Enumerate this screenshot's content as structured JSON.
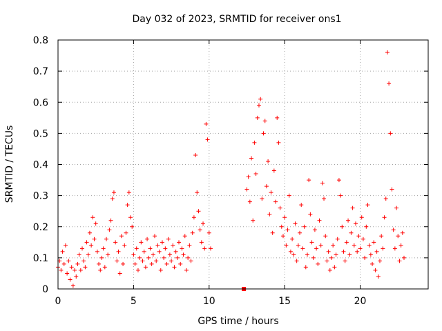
{
  "chart_data": {
    "type": "scatter",
    "title": "Day 032 of 2023, SRMTID for receiver ons1",
    "xlabel": "GPS time / hours",
    "ylabel": "SRMTID / TECUs",
    "xlim": [
      0,
      24.5
    ],
    "ylim": [
      0,
      0.8
    ],
    "x_ticks": [
      0,
      5,
      10,
      15,
      20
    ],
    "x_tick_labels": [
      "0",
      "5",
      "10",
      "15",
      "20"
    ],
    "y_ticks": [
      0,
      0.1,
      0.2,
      0.3,
      0.4,
      0.5,
      0.6,
      0.7,
      0.8
    ],
    "y_tick_labels": [
      "0",
      "0.1",
      "0.2",
      "0.3",
      "0.4",
      "0.5",
      "0.6",
      "0.7",
      "0.8"
    ],
    "grid": true,
    "marker": "+",
    "color": "#ff0000",
    "series": [
      {
        "name": "SRMTID",
        "points": [
          [
            0.0,
            0.07
          ],
          [
            0.1,
            0.09
          ],
          [
            0.2,
            0.06
          ],
          [
            0.3,
            0.12
          ],
          [
            0.4,
            0.08
          ],
          [
            0.5,
            0.14
          ],
          [
            0.6,
            0.05
          ],
          [
            0.7,
            0.09
          ],
          [
            0.8,
            0.03
          ],
          [
            0.9,
            0.07
          ],
          [
            1.0,
            0.01
          ],
          [
            1.1,
            0.06
          ],
          [
            1.2,
            0.04
          ],
          [
            1.3,
            0.08
          ],
          [
            1.4,
            0.11
          ],
          [
            1.5,
            0.06
          ],
          [
            1.6,
            0.13
          ],
          [
            1.7,
            0.09
          ],
          [
            1.8,
            0.07
          ],
          [
            1.9,
            0.15
          ],
          [
            2.0,
            0.11
          ],
          [
            2.1,
            0.18
          ],
          [
            2.2,
            0.14
          ],
          [
            2.3,
            0.23
          ],
          [
            2.4,
            0.16
          ],
          [
            2.5,
            0.21
          ],
          [
            2.6,
            0.12
          ],
          [
            2.7,
            0.08
          ],
          [
            2.8,
            0.06
          ],
          [
            2.9,
            0.1
          ],
          [
            3.0,
            0.13
          ],
          [
            3.1,
            0.07
          ],
          [
            3.2,
            0.16
          ],
          [
            3.3,
            0.11
          ],
          [
            3.4,
            0.19
          ],
          [
            3.5,
            0.22
          ],
          [
            3.6,
            0.29
          ],
          [
            3.7,
            0.31
          ],
          [
            3.8,
            0.15
          ],
          [
            3.9,
            0.09
          ],
          [
            4.0,
            0.12
          ],
          [
            4.1,
            0.05
          ],
          [
            4.2,
            0.17
          ],
          [
            4.3,
            0.08
          ],
          [
            4.4,
            0.14
          ],
          [
            4.5,
            0.18
          ],
          [
            4.6,
            0.27
          ],
          [
            4.7,
            0.31
          ],
          [
            4.8,
            0.23
          ],
          [
            4.9,
            0.2
          ],
          [
            5.0,
            0.11
          ],
          [
            5.1,
            0.08
          ],
          [
            5.2,
            0.13
          ],
          [
            5.3,
            0.06
          ],
          [
            5.4,
            0.1
          ],
          [
            5.5,
            0.15
          ],
          [
            5.6,
            0.09
          ],
          [
            5.7,
            0.12
          ],
          [
            5.8,
            0.07
          ],
          [
            5.9,
            0.16
          ],
          [
            6.0,
            0.1
          ],
          [
            6.1,
            0.13
          ],
          [
            6.2,
            0.08
          ],
          [
            6.3,
            0.11
          ],
          [
            6.4,
            0.17
          ],
          [
            6.5,
            0.09
          ],
          [
            6.6,
            0.14
          ],
          [
            6.7,
            0.12
          ],
          [
            6.8,
            0.06
          ],
          [
            6.9,
            0.15
          ],
          [
            7.0,
            0.1
          ],
          [
            7.1,
            0.13
          ],
          [
            7.2,
            0.08
          ],
          [
            7.3,
            0.16
          ],
          [
            7.4,
            0.11
          ],
          [
            7.5,
            0.09
          ],
          [
            7.6,
            0.14
          ],
          [
            7.7,
            0.07
          ],
          [
            7.8,
            0.12
          ],
          [
            7.9,
            0.1
          ],
          [
            8.0,
            0.15
          ],
          [
            8.1,
            0.08
          ],
          [
            8.2,
            0.13
          ],
          [
            8.3,
            0.11
          ],
          [
            8.4,
            0.17
          ],
          [
            8.5,
            0.06
          ],
          [
            8.6,
            0.1
          ],
          [
            8.7,
            0.14
          ],
          [
            8.8,
            0.09
          ],
          [
            8.9,
            0.18
          ],
          [
            9.0,
            0.23
          ],
          [
            9.1,
            0.43
          ],
          [
            9.2,
            0.31
          ],
          [
            9.3,
            0.25
          ],
          [
            9.4,
            0.19
          ],
          [
            9.5,
            0.15
          ],
          [
            9.6,
            0.21
          ],
          [
            9.7,
            0.13
          ],
          [
            9.8,
            0.53
          ],
          [
            9.9,
            0.48
          ],
          [
            10.0,
            0.18
          ],
          [
            10.1,
            0.13
          ],
          [
            12.3,
            0.0
          ],
          [
            12.5,
            0.32
          ],
          [
            12.6,
            0.36
          ],
          [
            12.7,
            0.28
          ],
          [
            12.8,
            0.42
          ],
          [
            12.9,
            0.22
          ],
          [
            13.0,
            0.47
          ],
          [
            13.1,
            0.37
          ],
          [
            13.2,
            0.55
          ],
          [
            13.3,
            0.59
          ],
          [
            13.4,
            0.61
          ],
          [
            13.5,
            0.29
          ],
          [
            13.6,
            0.5
          ],
          [
            13.7,
            0.54
          ],
          [
            13.8,
            0.33
          ],
          [
            13.9,
            0.41
          ],
          [
            14.0,
            0.24
          ],
          [
            14.1,
            0.31
          ],
          [
            14.2,
            0.18
          ],
          [
            14.3,
            0.38
          ],
          [
            14.4,
            0.28
          ],
          [
            14.5,
            0.55
          ],
          [
            14.6,
            0.47
          ],
          [
            14.7,
            0.26
          ],
          [
            14.8,
            0.2
          ],
          [
            14.9,
            0.17
          ],
          [
            15.0,
            0.23
          ],
          [
            15.1,
            0.14
          ],
          [
            15.2,
            0.19
          ],
          [
            15.3,
            0.3
          ],
          [
            15.4,
            0.12
          ],
          [
            15.5,
            0.16
          ],
          [
            15.6,
            0.11
          ],
          [
            15.7,
            0.21
          ],
          [
            15.8,
            0.09
          ],
          [
            15.9,
            0.14
          ],
          [
            16.0,
            0.18
          ],
          [
            16.1,
            0.27
          ],
          [
            16.2,
            0.13
          ],
          [
            16.3,
            0.2
          ],
          [
            16.4,
            0.07
          ],
          [
            16.5,
            0.11
          ],
          [
            16.6,
            0.35
          ],
          [
            16.7,
            0.24
          ],
          [
            16.8,
            0.15
          ],
          [
            16.9,
            0.1
          ],
          [
            17.0,
            0.19
          ],
          [
            17.1,
            0.13
          ],
          [
            17.2,
            0.08
          ],
          [
            17.3,
            0.22
          ],
          [
            17.4,
            0.14
          ],
          [
            17.5,
            0.34
          ],
          [
            17.6,
            0.29
          ],
          [
            17.7,
            0.17
          ],
          [
            17.8,
            0.09
          ],
          [
            17.9,
            0.12
          ],
          [
            18.0,
            0.06
          ],
          [
            18.1,
            0.1
          ],
          [
            18.2,
            0.14
          ],
          [
            18.3,
            0.07
          ],
          [
            18.4,
            0.11
          ],
          [
            18.5,
            0.16
          ],
          [
            18.6,
            0.35
          ],
          [
            18.7,
            0.3
          ],
          [
            18.8,
            0.2
          ],
          [
            18.9,
            0.12
          ],
          [
            19.0,
            0.09
          ],
          [
            19.1,
            0.15
          ],
          [
            19.2,
            0.22
          ],
          [
            19.3,
            0.11
          ],
          [
            19.4,
            0.18
          ],
          [
            19.5,
            0.26
          ],
          [
            19.6,
            0.14
          ],
          [
            19.7,
            0.21
          ],
          [
            19.8,
            0.12
          ],
          [
            19.9,
            0.17
          ],
          [
            20.0,
            0.13
          ],
          [
            20.1,
            0.23
          ],
          [
            20.2,
            0.16
          ],
          [
            20.3,
            0.1
          ],
          [
            20.4,
            0.2
          ],
          [
            20.5,
            0.27
          ],
          [
            20.6,
            0.14
          ],
          [
            20.7,
            0.11
          ],
          [
            20.8,
            0.08
          ],
          [
            20.9,
            0.15
          ],
          [
            21.0,
            0.06
          ],
          [
            21.1,
            0.12
          ],
          [
            21.2,
            0.04
          ],
          [
            21.3,
            0.09
          ],
          [
            21.4,
            0.17
          ],
          [
            21.5,
            0.13
          ],
          [
            21.6,
            0.23
          ],
          [
            21.7,
            0.29
          ],
          [
            21.8,
            0.76
          ],
          [
            21.9,
            0.66
          ],
          [
            22.0,
            0.5
          ],
          [
            22.1,
            0.32
          ],
          [
            22.2,
            0.19
          ],
          [
            22.3,
            0.13
          ],
          [
            22.4,
            0.26
          ],
          [
            22.5,
            0.17
          ],
          [
            22.6,
            0.09
          ],
          [
            22.7,
            0.14
          ],
          [
            22.8,
            0.18
          ],
          [
            22.9,
            0.1
          ]
        ]
      }
    ]
  }
}
